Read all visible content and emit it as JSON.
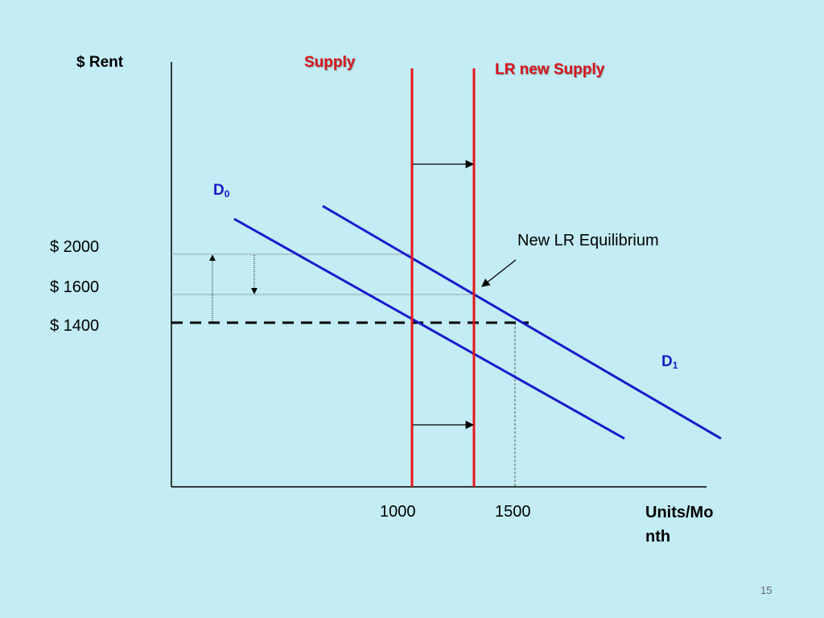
{
  "y_axis_label": "$ Rent",
  "x_axis_label": "Units/Month",
  "supply_label": "Supply",
  "new_supply_label": "LR new Supply",
  "demand_0": {
    "letter": "D",
    "subscript": "0"
  },
  "demand_1": {
    "letter": "D",
    "subscript": "1"
  },
  "annotation": "New LR Equilibrium",
  "price_labels": [
    "$ 2000",
    "$ 1600",
    "$ 1400"
  ],
  "quantity_labels": [
    "1000",
    "1500"
  ],
  "slide_number": "15"
}
